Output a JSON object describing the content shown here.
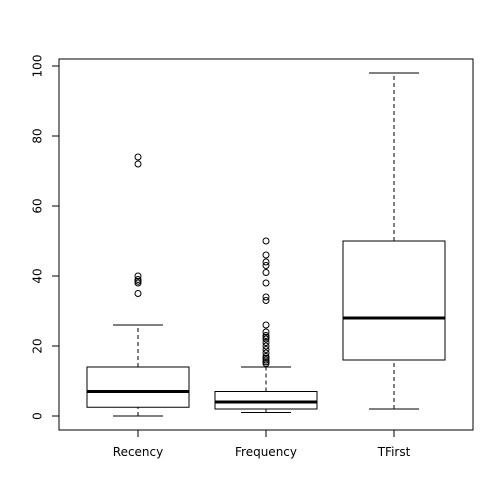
{
  "chart_data": {
    "type": "box",
    "title": "",
    "xlabel": "",
    "ylabel": "",
    "ylim": [
      0,
      100
    ],
    "yticks": [
      0,
      20,
      40,
      60,
      80,
      100
    ],
    "grid": false,
    "boxes": [
      {
        "label": "Recency",
        "whisker_low": 0,
        "q1": 2.5,
        "median": 7,
        "q3": 14,
        "whisker_high": 26,
        "outliers": [
          35,
          38,
          38.5,
          39,
          40,
          72,
          74
        ]
      },
      {
        "label": "Frequency",
        "whisker_low": 1,
        "q1": 2,
        "median": 4,
        "q3": 7,
        "whisker_high": 14,
        "outliers": [
          15,
          15.5,
          16,
          16.5,
          17,
          18,
          19,
          20,
          21,
          22,
          22.5,
          23,
          24,
          26,
          33,
          34,
          38,
          41,
          43,
          44,
          46,
          50
        ]
      },
      {
        "label": "TFirst",
        "whisker_low": 2,
        "q1": 16,
        "median": 28,
        "q3": 50,
        "whisker_high": 98,
        "outliers": []
      }
    ]
  }
}
